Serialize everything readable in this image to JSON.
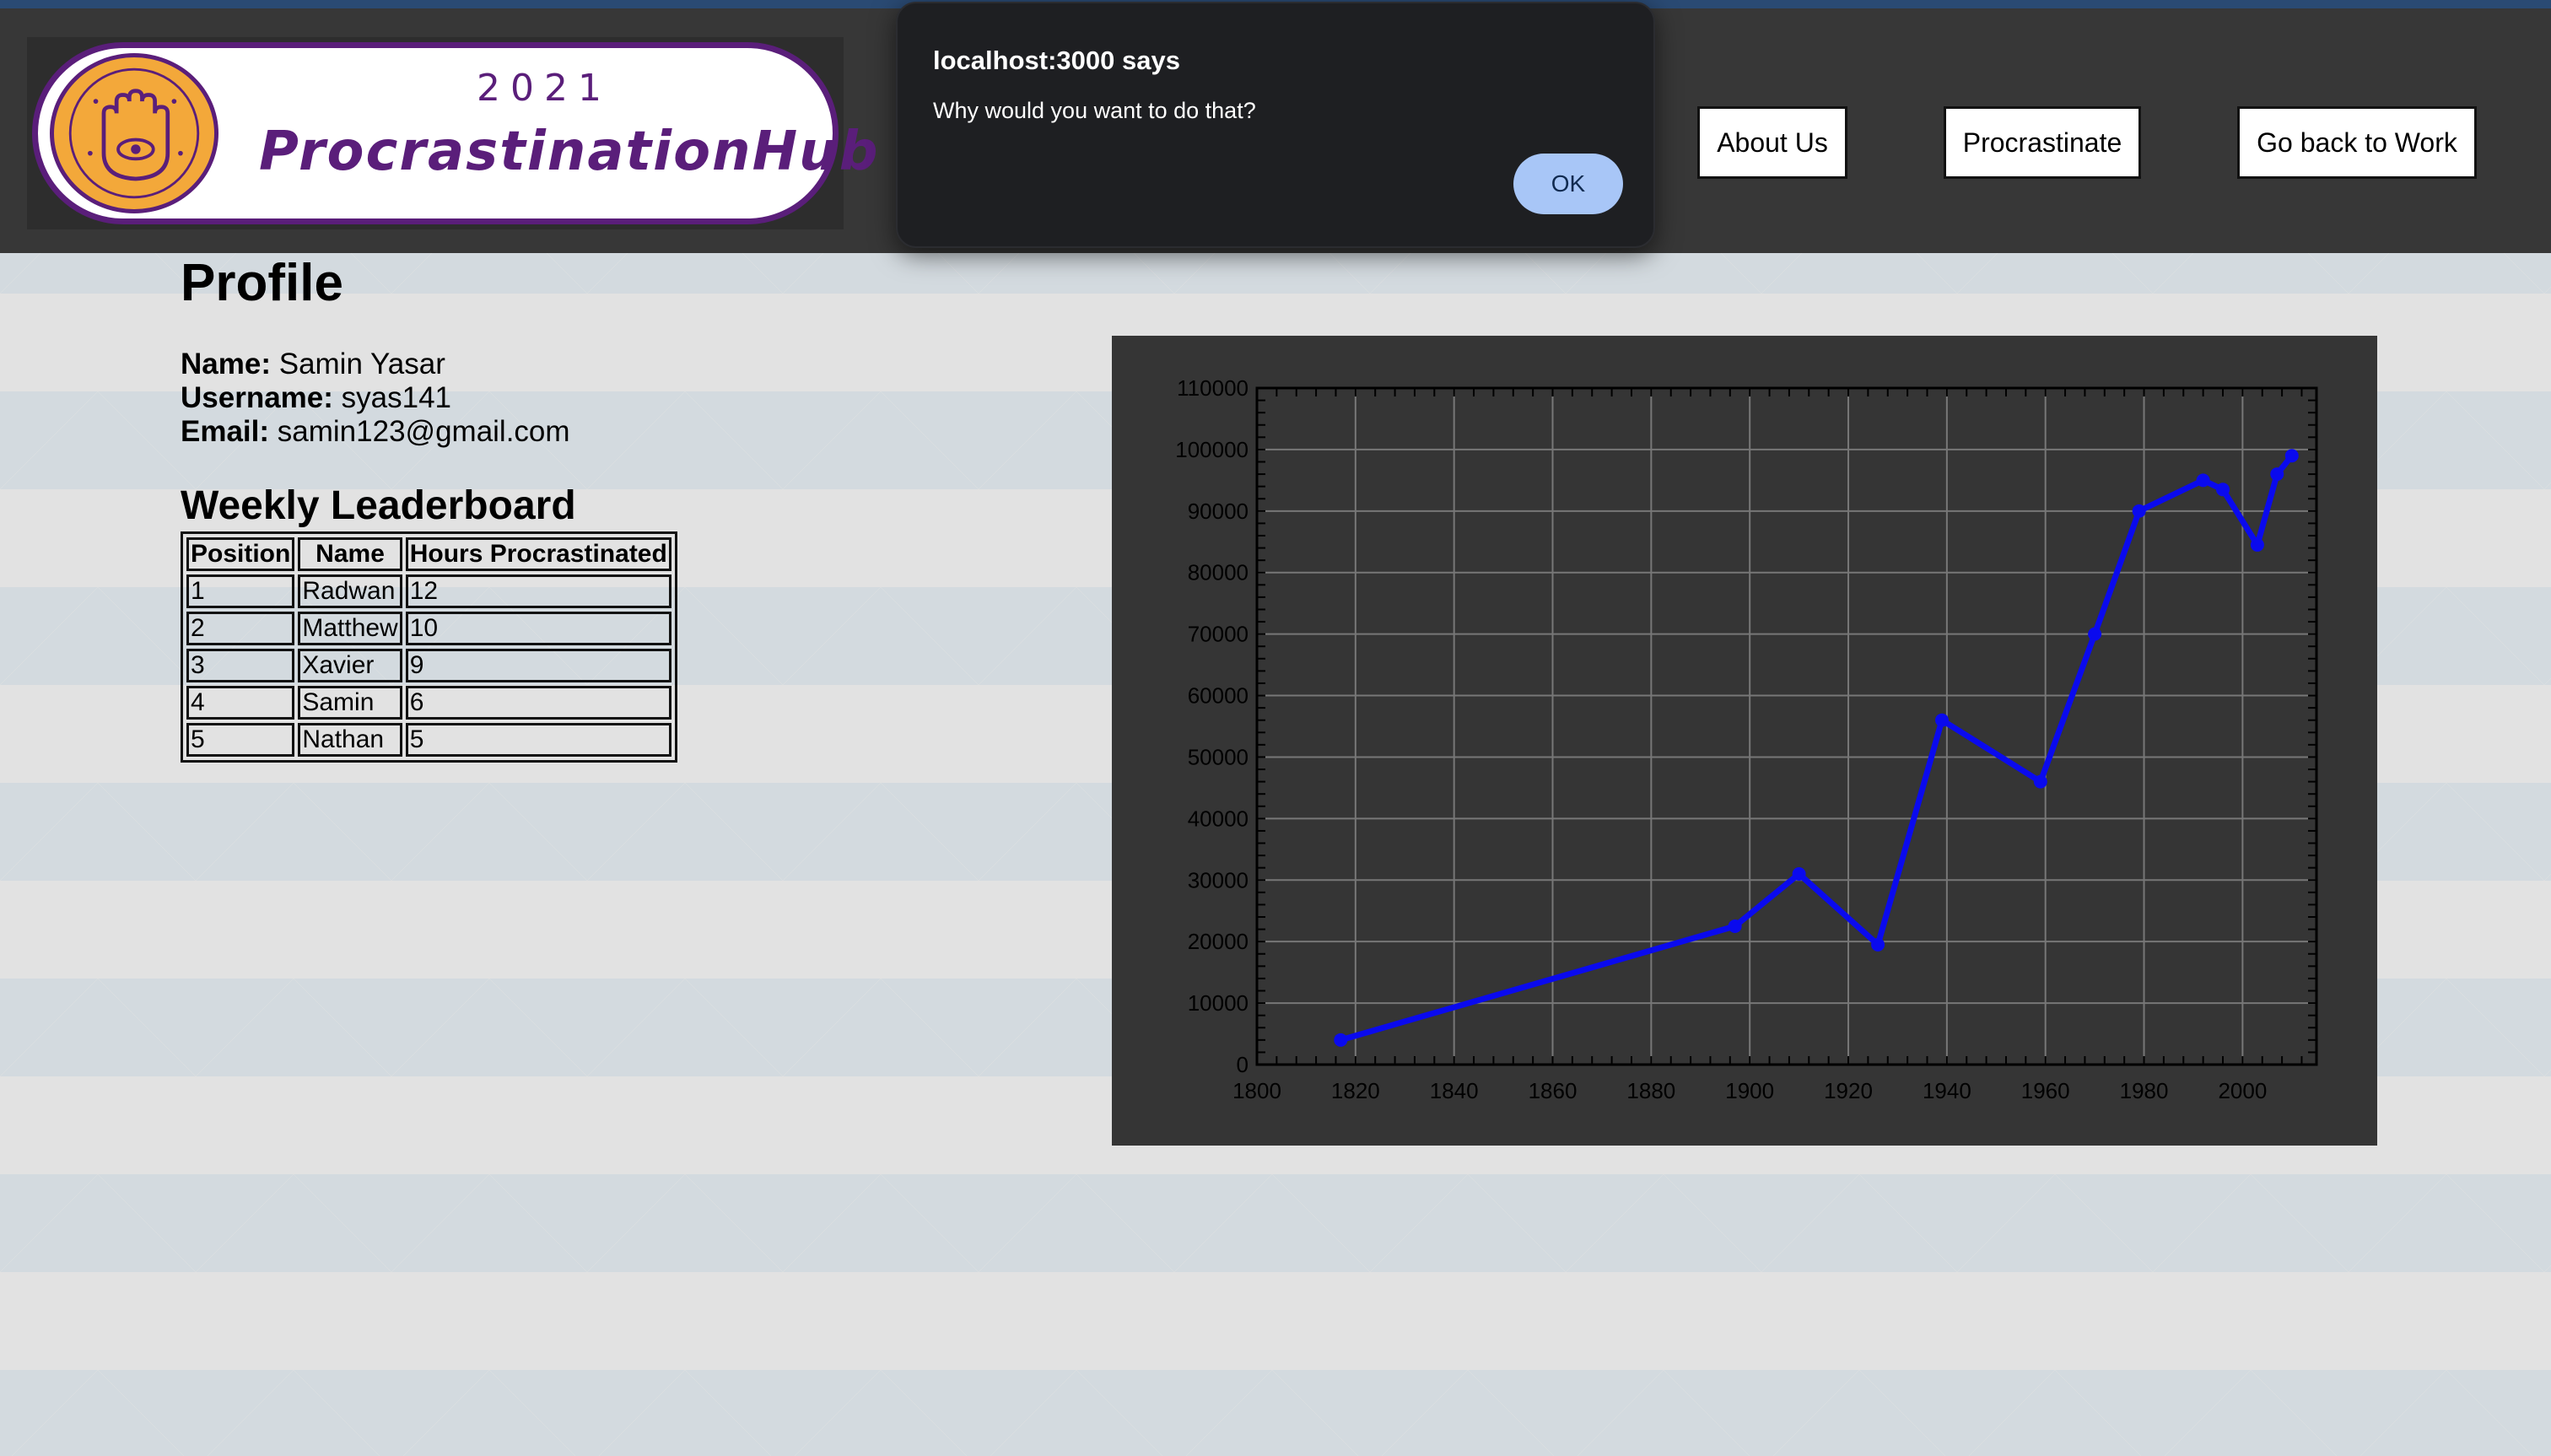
{
  "header": {
    "logo": {
      "year": "2021",
      "name": "ProcrastinationHub"
    },
    "nav": [
      {
        "label": "About Us"
      },
      {
        "label": "Procrastinate"
      },
      {
        "label": "Go back to Work"
      }
    ]
  },
  "dialog": {
    "title": "localhost:3000 says",
    "message": "Why would you want to do that?",
    "ok_label": "OK"
  },
  "profile": {
    "title": "Profile",
    "name_label": "Name:",
    "name": "Samin Yasar",
    "username_label": "Username:",
    "username": "syas141",
    "email_label": "Email:",
    "email": "samin123@gmail.com"
  },
  "leaderboard": {
    "title": "Weekly Leaderboard",
    "headers": [
      "Position",
      "Name",
      "Hours Procrastinated"
    ],
    "rows": [
      [
        "1",
        "Radwan",
        "12"
      ],
      [
        "2",
        "Matthew",
        "10"
      ],
      [
        "3",
        "Xavier",
        "9"
      ],
      [
        "4",
        "Samin",
        "6"
      ],
      [
        "5",
        "Nathan",
        "5"
      ]
    ]
  },
  "colors": {
    "brand_purple": "#5a1e7a",
    "brand_orange": "#f3a83a",
    "series_line": "#0a0aee",
    "dialog_ok": "#a8c6f7"
  },
  "chart_data": {
    "type": "line",
    "title": "",
    "xlabel": "",
    "ylabel": "",
    "xlim": [
      1800,
      2015
    ],
    "ylim": [
      0,
      110000
    ],
    "grid": true,
    "x_ticks": [
      1800,
      1820,
      1840,
      1860,
      1880,
      1900,
      1920,
      1940,
      1960,
      1980,
      2000
    ],
    "y_ticks": [
      0,
      10000,
      20000,
      30000,
      40000,
      50000,
      60000,
      70000,
      80000,
      90000,
      100000,
      110000
    ],
    "series": [
      {
        "x": [
          1817,
          1897,
          1910,
          1926,
          1939,
          1959,
          1970,
          1979,
          1992,
          1996,
          2003,
          2007,
          2010
        ],
        "y": [
          4000,
          22500,
          31000,
          19500,
          56000,
          46000,
          70000,
          90000,
          95000,
          93500,
          84500,
          96000,
          99000
        ]
      }
    ]
  }
}
